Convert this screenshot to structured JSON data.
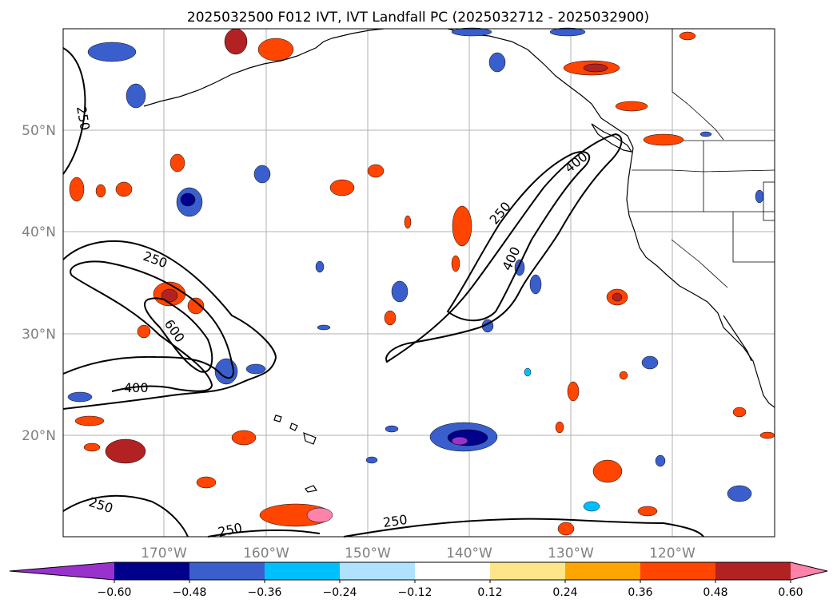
{
  "title": "2025032500 F012 IVT, IVT Landfall PC (2025032712 - 2025032900)",
  "lat_labels": [
    "50°N",
    "40°N",
    "30°N",
    "20°N"
  ],
  "lon_labels": [
    "170°W",
    "160°W",
    "150°W",
    "140°W",
    "130°W",
    "120°W"
  ],
  "contour_labels": [
    "250",
    "250",
    "600",
    "400",
    "250",
    "400",
    "400",
    "250",
    "250",
    "250",
    "250"
  ],
  "colorbar": {
    "tick_labels": [
      "−0.60",
      "−0.48",
      "−0.36",
      "−0.24",
      "−0.12",
      "0.12",
      "0.24",
      "0.36",
      "0.48",
      "0.60"
    ],
    "colors": [
      "#9932cc",
      "#00008b",
      "#3a5fcd",
      "#00bfff",
      "#b0e2ff",
      "#ffffff",
      "#fde68a",
      "#ffa500",
      "#ff4500",
      "#b22222",
      "#ff82ab"
    ]
  }
}
